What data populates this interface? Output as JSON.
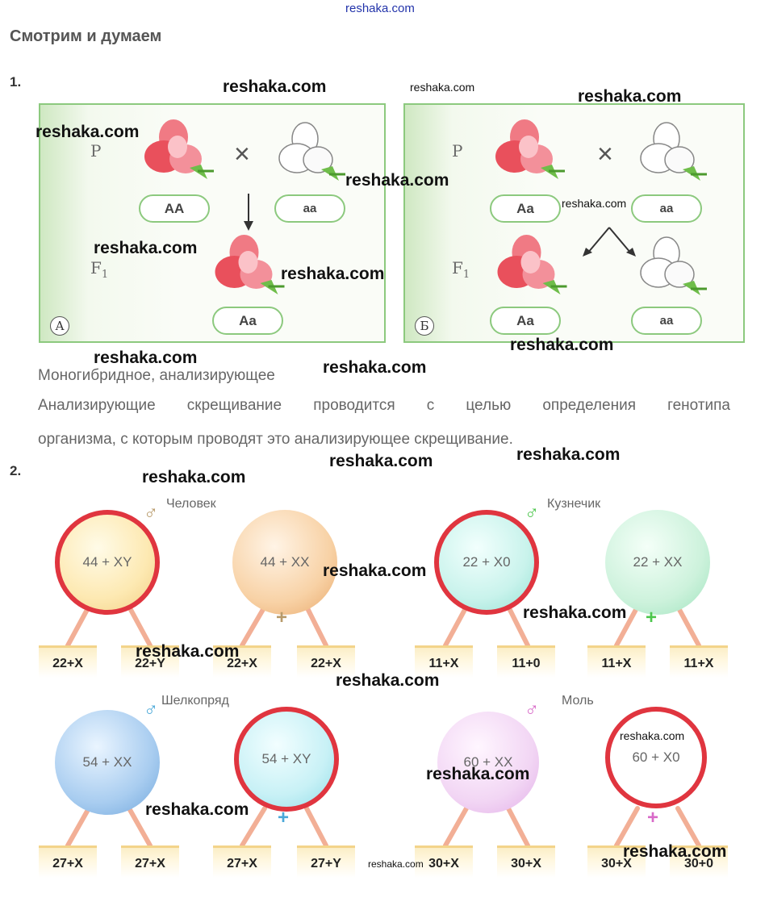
{
  "header": {
    "site": "reshaka.com",
    "title": "Смотрим и думаем"
  },
  "task1": {
    "number": "1.",
    "panel_a": {
      "parent_label": "P",
      "f1_label": "F",
      "f1_sub": "1",
      "cross_symbol": "×",
      "genotype_left": "AA",
      "genotype_right": "aa",
      "offspring_genotype": "Aa",
      "corner_letter": "А"
    },
    "panel_b": {
      "parent_label": "P",
      "f1_label": "F",
      "f1_sub": "1",
      "cross_symbol": "×",
      "genotype_left": "Aa",
      "genotype_right": "aa",
      "offspring_left": "Aa",
      "offspring_right": "aa",
      "corner_letter": "Б"
    },
    "answer_line1": "Моногибридное, анализирующее",
    "answer_line2": "Анализирующие скрещивание проводится с целью определения генотипа",
    "answer_line3": "организма, с которым проводят это анализирующее скрещивание."
  },
  "task2": {
    "number": "2.",
    "human": {
      "name": "Человек",
      "male": "44 + XY",
      "female": "44 + XX",
      "gametes": [
        "22+X",
        "22+Y",
        "22+X",
        "22+X"
      ]
    },
    "grasshopper": {
      "name": "Кузнечик",
      "male": "22 + X0",
      "female": "22 + XX",
      "gametes": [
        "11+X",
        "11+0",
        "11+X",
        "11+X"
      ]
    },
    "silkworm": {
      "name": "Шелкопряд",
      "male": "54 + XX",
      "female": "54 + XY",
      "gametes": [
        "27+X",
        "27+X",
        "27+X",
        "27+Y"
      ]
    },
    "moth": {
      "name": "Моль",
      "male": "60 + XX",
      "female": "60 + X0",
      "gametes": [
        "30+X",
        "30+X",
        "30+X",
        "30+0"
      ]
    },
    "male_symbol": "♂",
    "female_symbol": "+"
  },
  "watermark": "reshaka.com",
  "colors": {
    "panel_border": "#8cc97e",
    "highlight_ring": "#e0353f",
    "human_male_symbol": "#b89a6a",
    "grasshopper_symbol": "#4cc64c",
    "silkworm_symbol": "#4aa8d8",
    "moth_symbol": "#d86ac8"
  }
}
